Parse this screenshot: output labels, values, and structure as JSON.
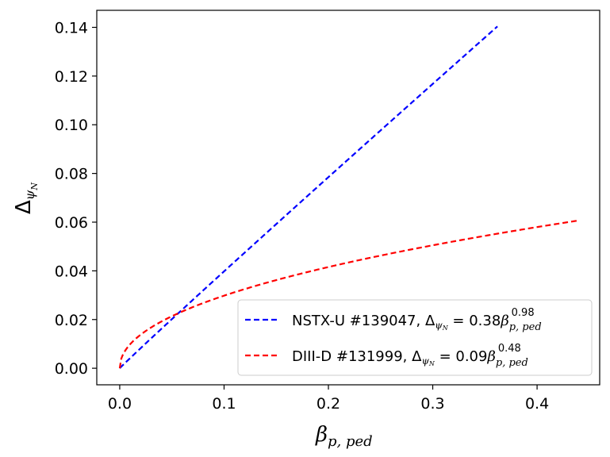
{
  "chart_data": {
    "type": "line",
    "title": "",
    "xlabel": "β_{p,ped}",
    "ylabel": "Δ_{ψN}",
    "xlim": [
      -0.022,
      0.46
    ],
    "ylim": [
      -0.0068,
      0.147
    ],
    "x_ticks": [
      0.0,
      0.1,
      0.2,
      0.3,
      0.4
    ],
    "x_tick_labels": [
      "0.0",
      "0.1",
      "0.2",
      "0.3",
      "0.4"
    ],
    "y_ticks": [
      0.0,
      0.02,
      0.04,
      0.06,
      0.08,
      0.1,
      0.12,
      0.14
    ],
    "y_tick_labels": [
      "0.00",
      "0.02",
      "0.04",
      "0.06",
      "0.08",
      "0.10",
      "0.12",
      "0.14"
    ],
    "grid": false,
    "legend_position": "lower-right",
    "series": [
      {
        "name": "NSTX-U #139047",
        "legend_prefix": "NSTX-U #139047, ",
        "legend_formula": "Δψ_N = 0.38β_{p,ped}^{0.98}",
        "coefficient": 0.38,
        "exponent": 0.98,
        "x_max": 0.362,
        "color": "#0000ff",
        "style": "dashed"
      },
      {
        "name": "DIII-D #131999",
        "legend_prefix": "DIII-D #131999, ",
        "legend_formula": "Δψ_N = 0.09β_{p,ped}^{0.48}",
        "coefficient": 0.09,
        "exponent": 0.48,
        "x_max": 0.438,
        "color": "#ff0000",
        "style": "dashed"
      }
    ]
  }
}
